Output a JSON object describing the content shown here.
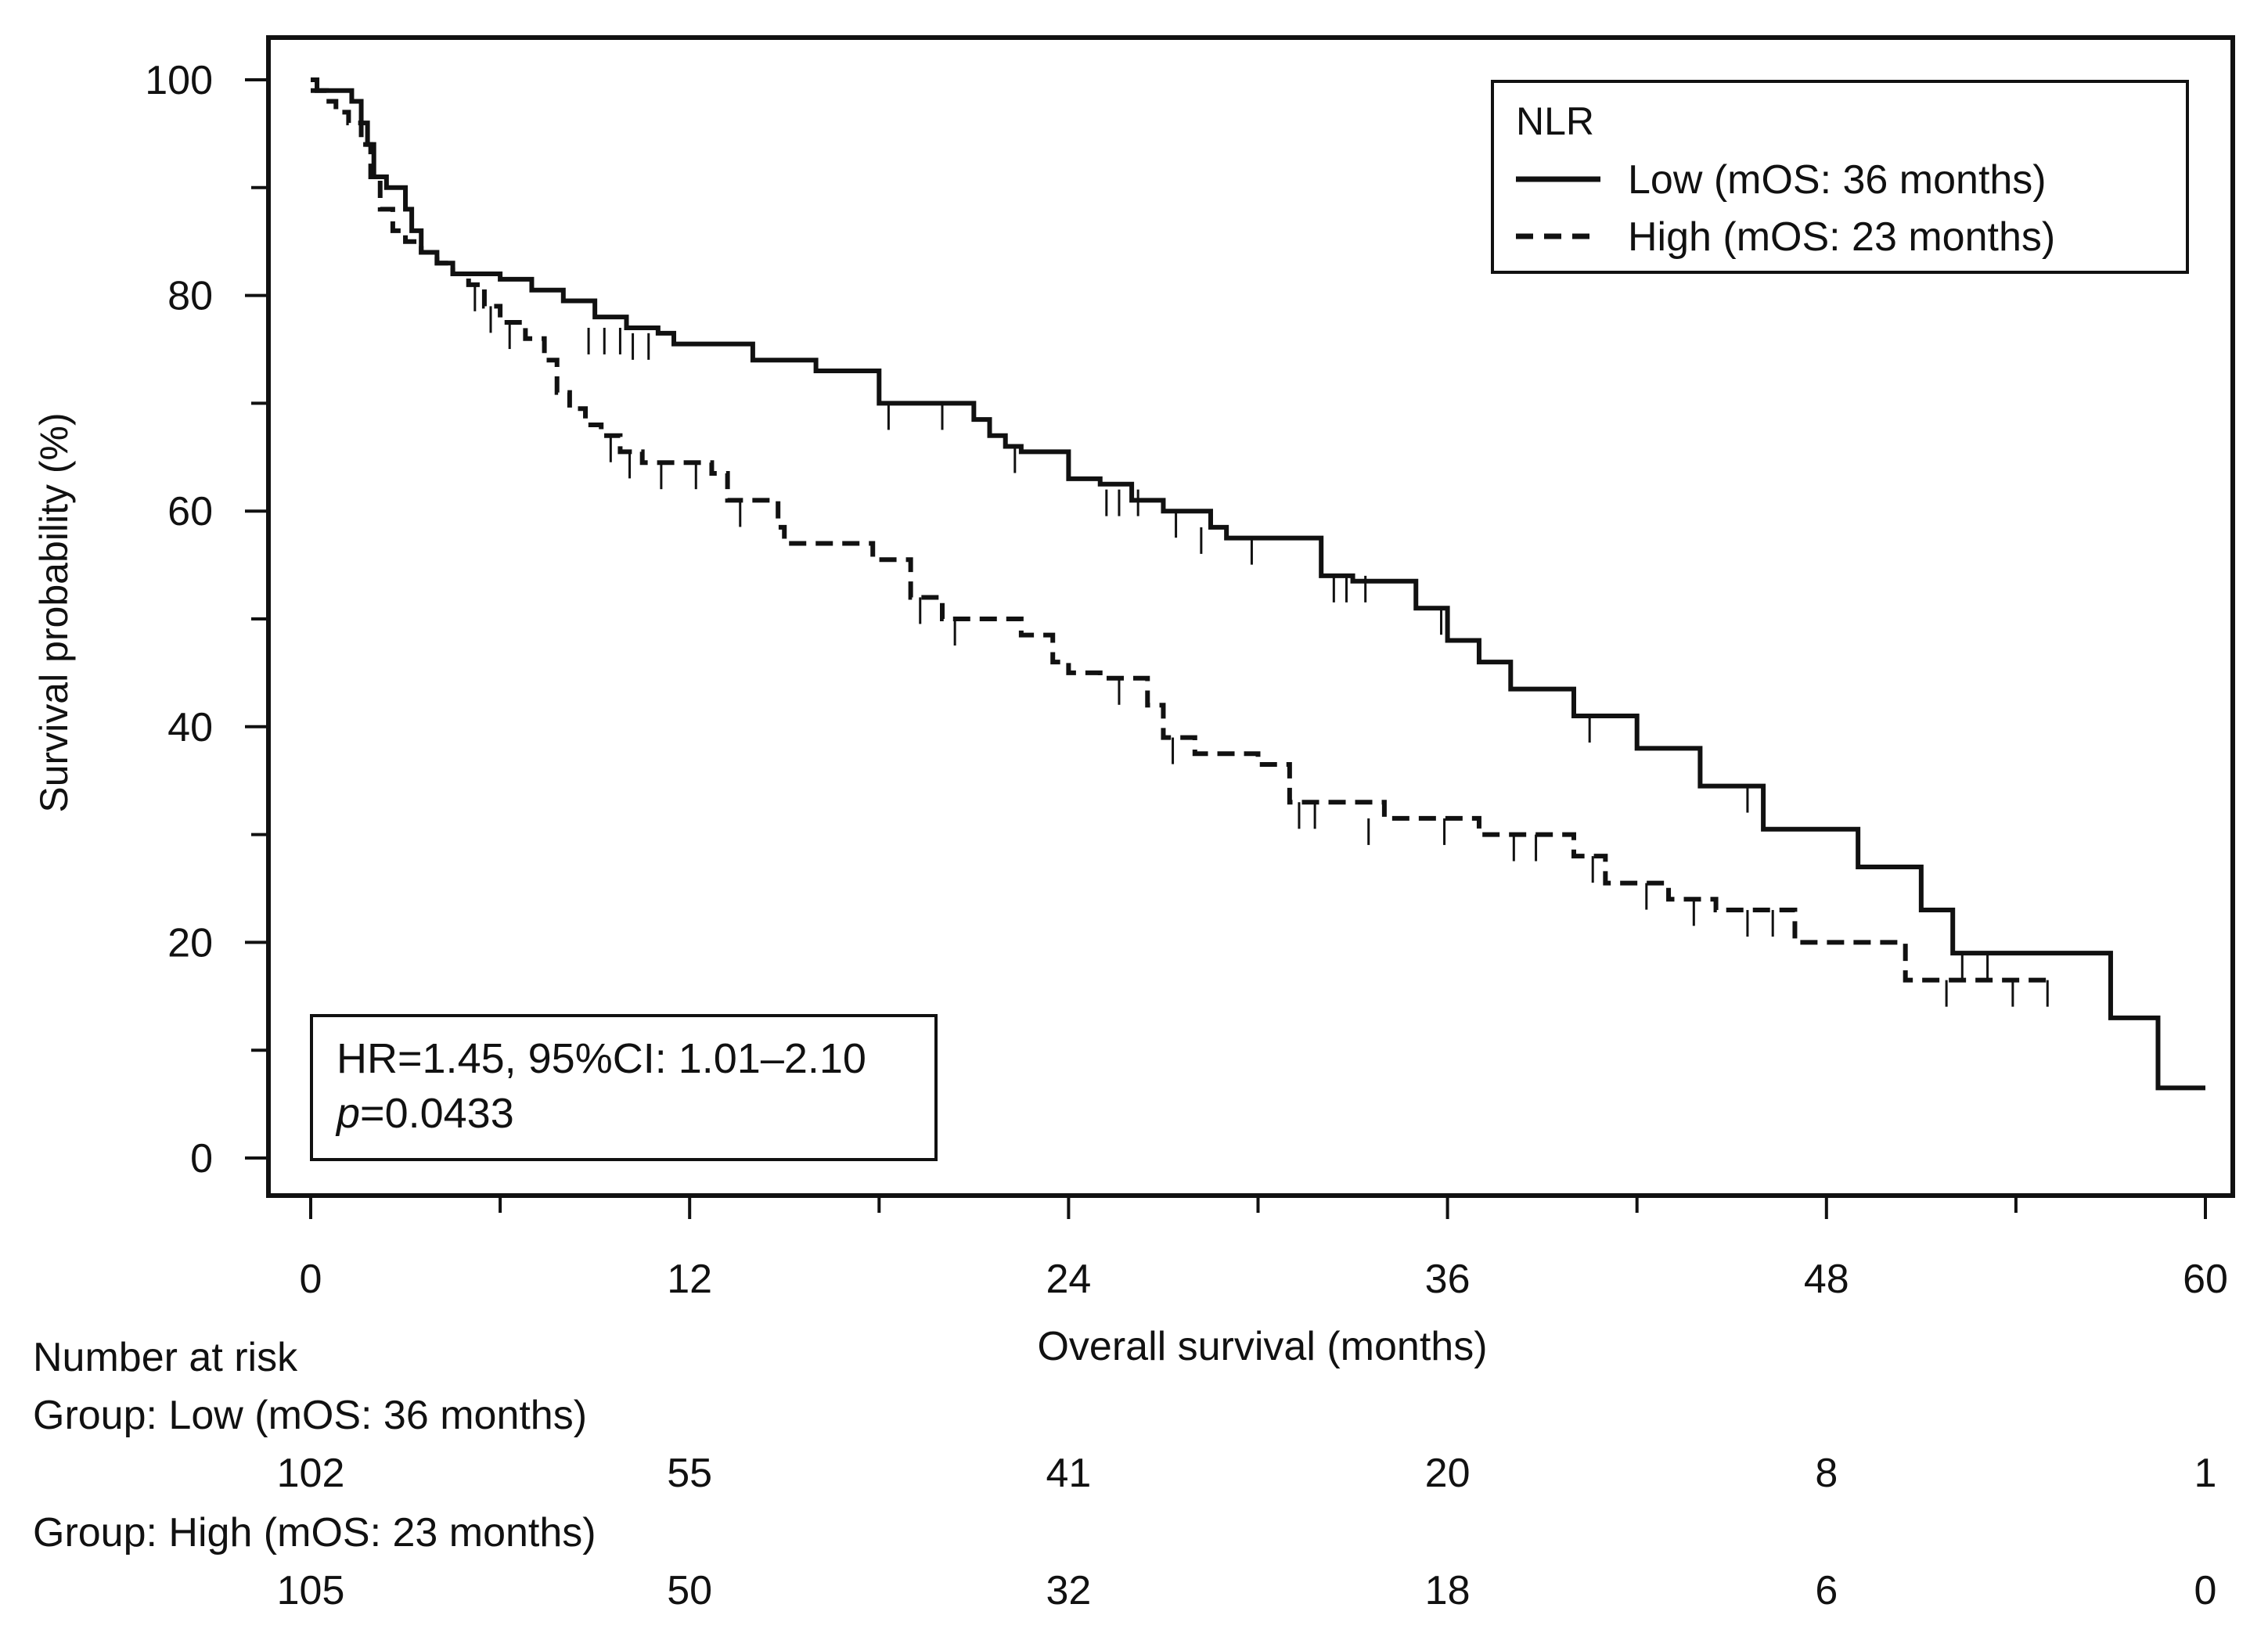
{
  "chart_data": {
    "type": "line",
    "subtype": "kaplan-meier",
    "xlabel": "Overall survival (months)",
    "ylabel": "Survival probability (%)",
    "xlim": [
      0,
      60
    ],
    "ylim": [
      0,
      100
    ],
    "xticks": [
      "0",
      "12",
      "24",
      "36",
      "48",
      "60"
    ],
    "yticks": [
      "0",
      "20",
      "40",
      "60",
      "80",
      "100"
    ],
    "legend": {
      "title": "NLR",
      "position": "top-right",
      "entries": [
        {
          "label": "Low (mOS: 36 months)",
          "style": "solid"
        },
        {
          "label": "High (mOS: 23 months)",
          "style": "dashed"
        }
      ]
    },
    "annotation": {
      "position": "bottom-left",
      "line1": "HR=1.45, 95%CI: 1.01–2.10",
      "p_symbol": "p",
      "p_value": "=0.0433"
    },
    "series": [
      {
        "name": "Low (mOS: 36 months)",
        "style": "solid",
        "steps": [
          [
            0,
            100
          ],
          [
            0.2,
            99
          ],
          [
            1.3,
            98
          ],
          [
            1.6,
            96
          ],
          [
            1.8,
            94
          ],
          [
            2,
            91
          ],
          [
            2.4,
            90
          ],
          [
            3,
            88
          ],
          [
            3.2,
            86
          ],
          [
            3.5,
            84
          ],
          [
            4,
            83
          ],
          [
            4.5,
            82
          ],
          [
            5,
            82
          ],
          [
            6,
            81.5
          ],
          [
            7,
            80.5
          ],
          [
            8,
            79.5
          ],
          [
            9,
            78
          ],
          [
            10,
            77
          ],
          [
            11,
            76.5
          ],
          [
            11.5,
            75.5
          ],
          [
            14,
            74
          ],
          [
            16,
            73
          ],
          [
            18,
            70
          ],
          [
            21,
            68.5
          ],
          [
            21.5,
            67
          ],
          [
            22,
            66
          ],
          [
            22.5,
            65.5
          ],
          [
            24,
            63
          ],
          [
            25,
            62.5
          ],
          [
            26,
            61
          ],
          [
            27,
            60
          ],
          [
            28.5,
            58.5
          ],
          [
            29,
            57.5
          ],
          [
            32,
            54
          ],
          [
            33,
            53.5
          ],
          [
            35,
            51
          ],
          [
            36,
            48
          ],
          [
            37,
            46
          ],
          [
            38,
            43.5
          ],
          [
            40,
            41
          ],
          [
            42,
            38
          ],
          [
            44,
            34.5
          ],
          [
            46,
            30.5
          ],
          [
            49,
            27
          ],
          [
            51,
            23
          ],
          [
            52,
            19
          ],
          [
            57,
            13
          ],
          [
            58.5,
            6.5
          ],
          [
            60,
            6.5
          ]
        ],
        "censored": [
          [
            8.8,
            77
          ],
          [
            9.3,
            77
          ],
          [
            9.8,
            77
          ],
          [
            10.2,
            76.5
          ],
          [
            10.7,
            76.5
          ],
          [
            18.3,
            70
          ],
          [
            20,
            70
          ],
          [
            22.3,
            66
          ],
          [
            25.2,
            62
          ],
          [
            25.6,
            62
          ],
          [
            26.2,
            62
          ],
          [
            27.4,
            60
          ],
          [
            28.2,
            58.5
          ],
          [
            29.8,
            57.5
          ],
          [
            32.4,
            54
          ],
          [
            32.8,
            54
          ],
          [
            33.4,
            54
          ],
          [
            35.8,
            51
          ],
          [
            40.5,
            41
          ],
          [
            45.5,
            34.5
          ],
          [
            52.3,
            19
          ],
          [
            53.1,
            19
          ]
        ]
      },
      {
        "name": "High (mOS: 23 months)",
        "style": "dashed",
        "steps": [
          [
            0,
            99
          ],
          [
            0.5,
            98
          ],
          [
            0.8,
            97
          ],
          [
            1.2,
            96
          ],
          [
            1.6,
            94
          ],
          [
            1.9,
            91
          ],
          [
            2.2,
            88
          ],
          [
            2.6,
            86
          ],
          [
            3,
            85
          ],
          [
            3.5,
            84
          ],
          [
            4,
            83
          ],
          [
            4.5,
            82
          ],
          [
            5,
            81
          ],
          [
            5.5,
            79
          ],
          [
            6,
            77.5
          ],
          [
            6.8,
            76
          ],
          [
            7.4,
            74
          ],
          [
            7.8,
            71
          ],
          [
            8.2,
            69.5
          ],
          [
            8.7,
            68
          ],
          [
            9.2,
            67
          ],
          [
            9.8,
            65.5
          ],
          [
            10.5,
            64.5
          ],
          [
            12,
            64.5
          ],
          [
            12.7,
            63.5
          ],
          [
            13.2,
            61
          ],
          [
            14.8,
            58.5
          ],
          [
            15,
            57
          ],
          [
            16.5,
            57
          ],
          [
            17.8,
            55.5
          ],
          [
            19,
            52
          ],
          [
            20,
            50
          ],
          [
            22.5,
            48.5
          ],
          [
            23.5,
            46
          ],
          [
            24,
            45
          ],
          [
            25,
            44.5
          ],
          [
            26.5,
            42
          ],
          [
            27,
            39
          ],
          [
            28,
            37.5
          ],
          [
            30,
            36.5
          ],
          [
            31,
            33
          ],
          [
            34,
            31.5
          ],
          [
            37,
            30
          ],
          [
            40,
            28
          ],
          [
            41,
            25.5
          ],
          [
            43,
            24
          ],
          [
            44.5,
            23
          ],
          [
            47,
            20
          ],
          [
            50.5,
            16.5
          ],
          [
            55,
            16.5
          ]
        ],
        "censored": [
          [
            5.2,
            81
          ],
          [
            5.7,
            79
          ],
          [
            6.3,
            77.5
          ],
          [
            9.5,
            67
          ],
          [
            10.1,
            65.5
          ],
          [
            11.1,
            64.5
          ],
          [
            12.2,
            64.5
          ],
          [
            13.6,
            61
          ],
          [
            19.3,
            52
          ],
          [
            20.4,
            50
          ],
          [
            25.6,
            44.5
          ],
          [
            27.3,
            39
          ],
          [
            31.3,
            33
          ],
          [
            31.8,
            33
          ],
          [
            33.5,
            31.5
          ],
          [
            35.9,
            31.5
          ],
          [
            38.1,
            30
          ],
          [
            38.8,
            30
          ],
          [
            40.6,
            28
          ],
          [
            42.3,
            25.5
          ],
          [
            43.8,
            24
          ],
          [
            45.5,
            23
          ],
          [
            46.3,
            23
          ],
          [
            51.8,
            16.5
          ],
          [
            53.9,
            16.5
          ],
          [
            55,
            16.5
          ]
        ]
      }
    ],
    "risk_table": {
      "title": "Number at risk",
      "times": [
        0,
        12,
        24,
        36,
        48,
        60
      ],
      "groups": [
        {
          "label": "Group: Low (mOS: 36 months)",
          "counts": [
            "102",
            "55",
            "41",
            "20",
            "8",
            "1"
          ]
        },
        {
          "label": "Group: High (mOS: 23 months)",
          "counts": [
            "105",
            "50",
            "32",
            "18",
            "6",
            "0"
          ]
        }
      ]
    }
  }
}
